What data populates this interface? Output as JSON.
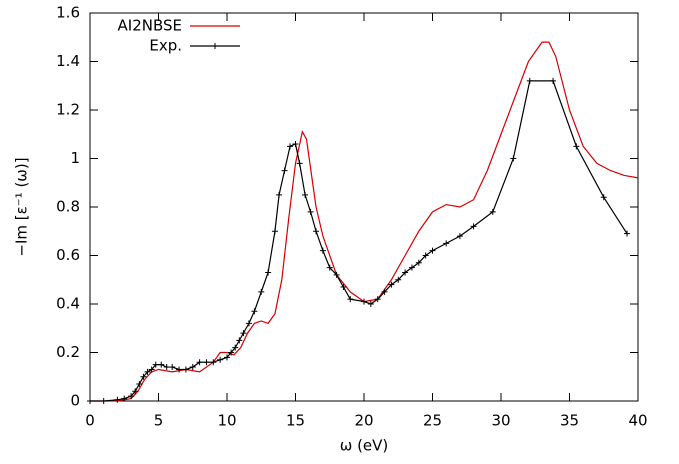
{
  "chart_data": {
    "type": "line",
    "xlabel": "ω (eV)",
    "ylabel": "−Im [ε⁻¹ (ω)]",
    "xlim": [
      0,
      40
    ],
    "xticks": [
      0,
      5,
      10,
      15,
      20,
      25,
      30,
      35,
      40
    ],
    "ylim": [
      0,
      1.6
    ],
    "yticks": [
      0,
      0.2,
      0.4,
      0.6,
      0.8,
      1,
      1.2,
      1.4,
      1.6
    ],
    "legend": "top-left",
    "series": [
      {
        "name": "AI2NBSE",
        "color": "#d40000",
        "markers": false,
        "x": [
          0,
          2,
          3,
          3.5,
          4,
          4.5,
          5,
          6,
          7,
          8,
          9,
          9.5,
          10,
          10.5,
          11,
          11.5,
          12,
          12.5,
          13,
          13.5,
          14,
          14.5,
          15,
          15.5,
          15.8,
          16,
          16.5,
          17,
          17.5,
          18,
          19,
          20,
          21,
          22,
          23,
          24,
          25,
          26,
          27,
          28,
          29,
          30,
          31,
          32,
          33,
          33.5,
          34,
          35,
          36,
          37,
          38,
          39,
          40
        ],
        "values": [
          0,
          0,
          0.01,
          0.04,
          0.09,
          0.12,
          0.13,
          0.12,
          0.13,
          0.12,
          0.16,
          0.2,
          0.2,
          0.19,
          0.22,
          0.28,
          0.32,
          0.33,
          0.32,
          0.36,
          0.5,
          0.75,
          0.98,
          1.11,
          1.08,
          1.0,
          0.8,
          0.68,
          0.6,
          0.52,
          0.45,
          0.41,
          0.42,
          0.5,
          0.6,
          0.7,
          0.78,
          0.81,
          0.8,
          0.83,
          0.95,
          1.1,
          1.25,
          1.4,
          1.48,
          1.48,
          1.42,
          1.2,
          1.05,
          0.98,
          0.95,
          0.93,
          0.92
        ]
      },
      {
        "name": "Exp.",
        "color": "#000000",
        "markers": true,
        "x": [
          0,
          1,
          2,
          2.5,
          3,
          3.3,
          3.6,
          3.9,
          4.2,
          4.5,
          4.8,
          5.2,
          5.6,
          6,
          6.5,
          7,
          7.5,
          8,
          8.5,
          9,
          9.5,
          10,
          10.3,
          10.6,
          10.9,
          11.2,
          11.6,
          12,
          12.5,
          13,
          13.5,
          13.8,
          14.2,
          14.6,
          15,
          15.3,
          15.7,
          16.1,
          16.5,
          17,
          17.5,
          18,
          18.5,
          19,
          20,
          20.5,
          21,
          21.5,
          22,
          22.5,
          23,
          23.5,
          24,
          24.5,
          25,
          26,
          27,
          28,
          29.4,
          30.9,
          32.1,
          33.8,
          35.5,
          37.5,
          39.2
        ],
        "values": [
          0,
          0,
          0.005,
          0.01,
          0.02,
          0.04,
          0.07,
          0.1,
          0.12,
          0.13,
          0.15,
          0.15,
          0.14,
          0.14,
          0.13,
          0.13,
          0.14,
          0.16,
          0.16,
          0.16,
          0.17,
          0.18,
          0.2,
          0.22,
          0.25,
          0.28,
          0.32,
          0.37,
          0.45,
          0.53,
          0.7,
          0.85,
          0.95,
          1.05,
          1.06,
          0.98,
          0.85,
          0.78,
          0.7,
          0.62,
          0.55,
          0.52,
          0.47,
          0.42,
          0.41,
          0.4,
          0.42,
          0.45,
          0.48,
          0.5,
          0.53,
          0.55,
          0.57,
          0.6,
          0.62,
          0.65,
          0.68,
          0.72,
          0.78,
          1.0,
          1.32,
          1.32,
          1.05,
          0.84,
          0.69
        ]
      }
    ]
  }
}
